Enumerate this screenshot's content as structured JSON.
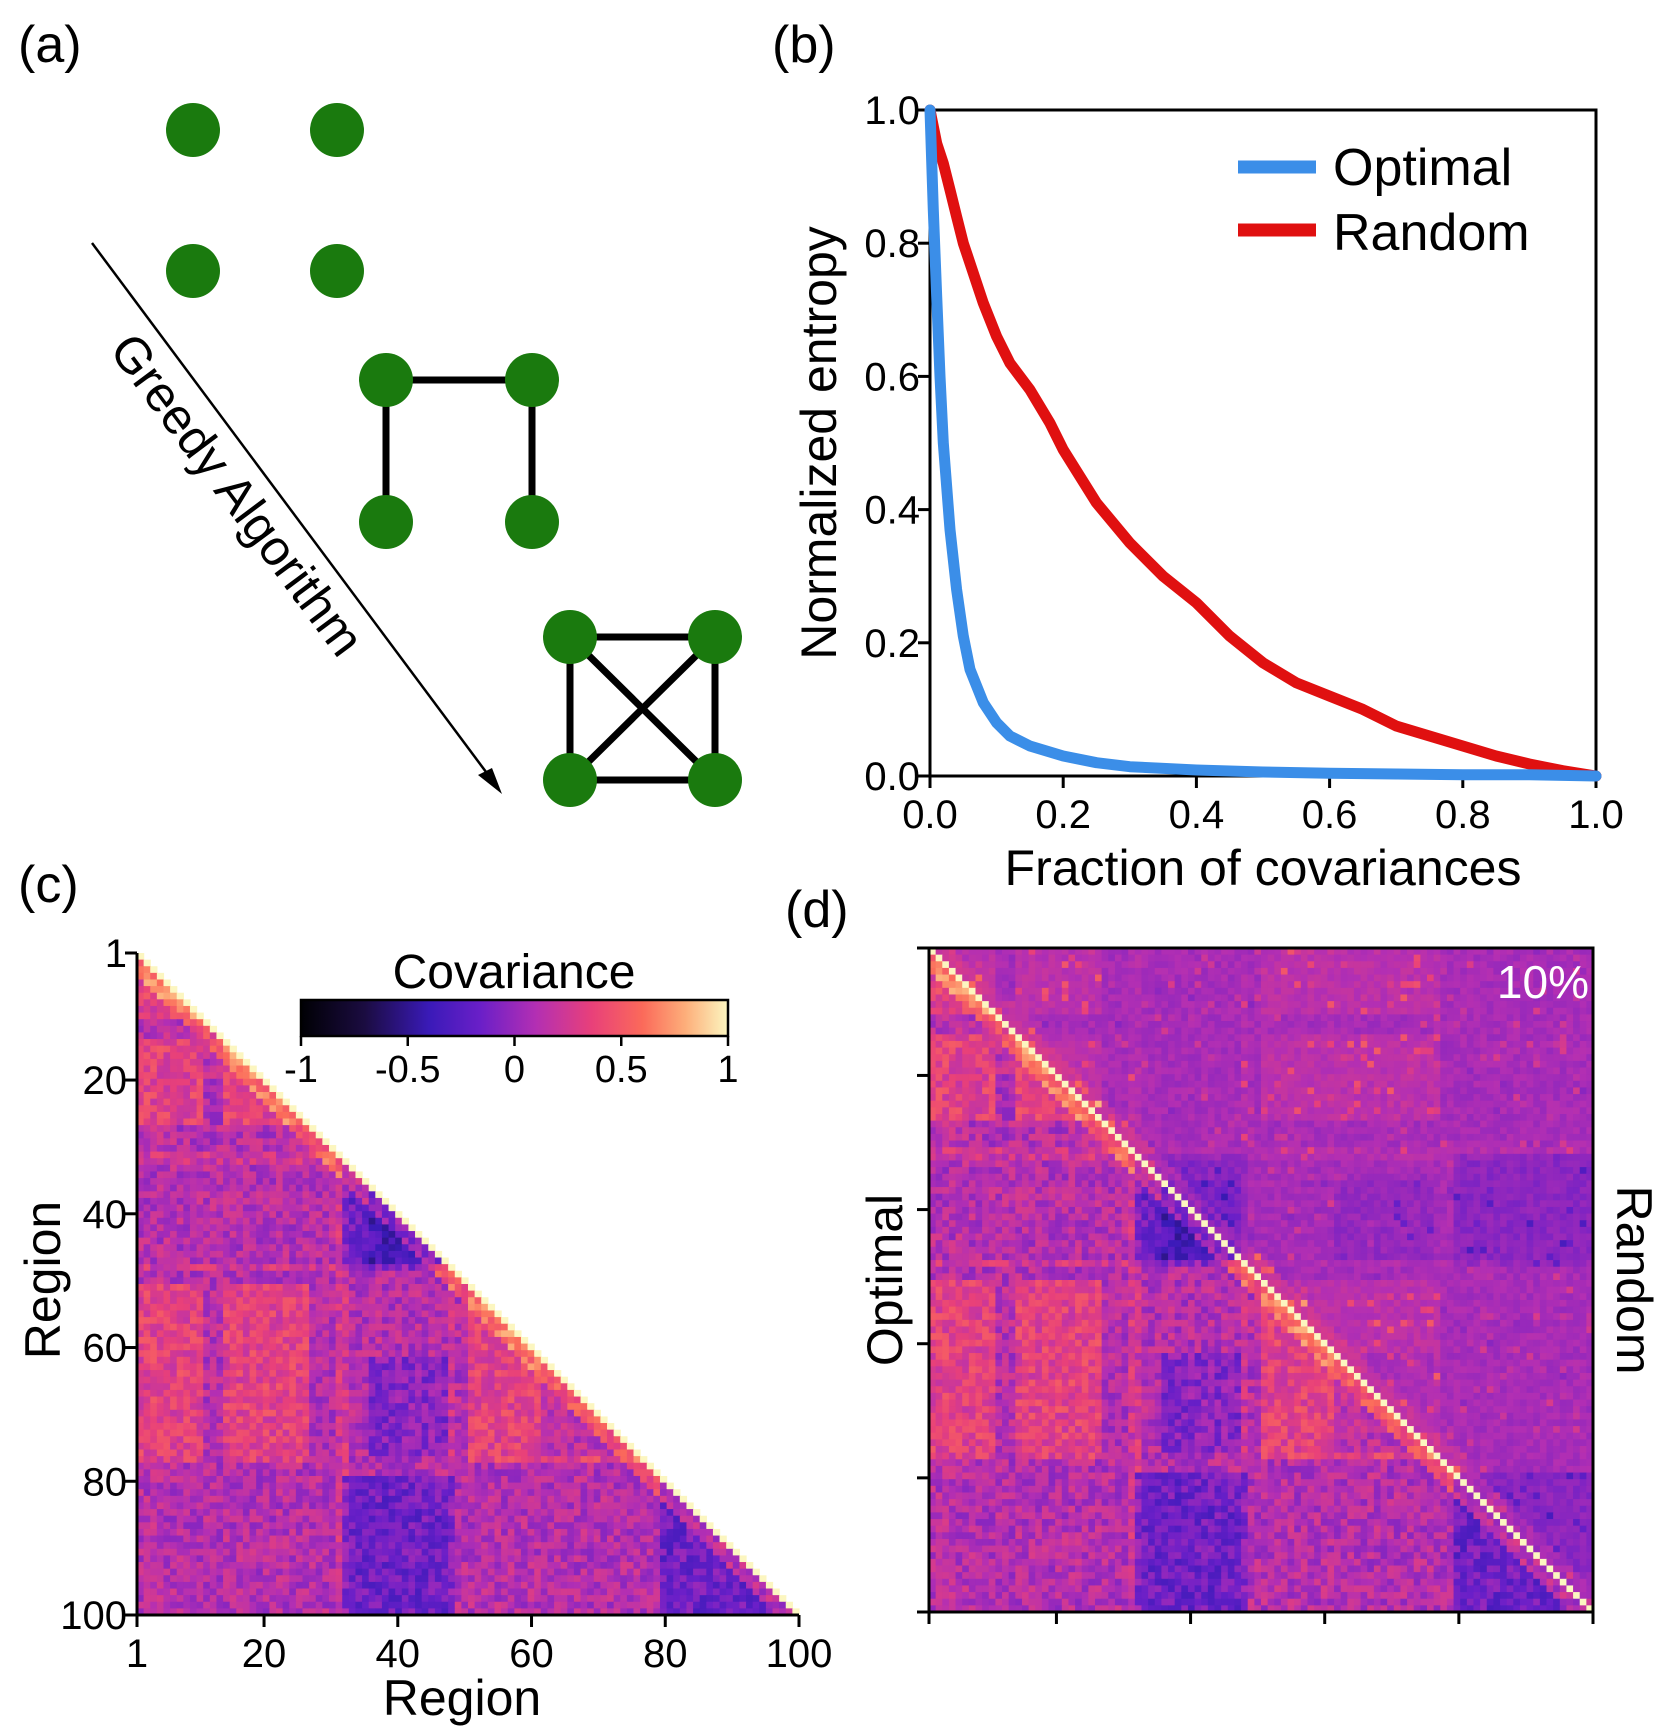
{
  "panels": {
    "a": {
      "label": "(a)",
      "arrow_text": "Greedy Algorithm",
      "node_color": "#1a7a0e"
    },
    "b": {
      "label": "(b)"
    },
    "c": {
      "label": "(c)"
    },
    "d": {
      "label": "(d)",
      "percent": "10%",
      "left_label": "Optimal",
      "right_label": "Random"
    }
  },
  "chart_data": [
    {
      "type": "line",
      "panel": "b",
      "xlabel": "Fraction of covariances",
      "ylabel": "Normalized entropy",
      "xlim": [
        0,
        1
      ],
      "ylim": [
        0,
        1
      ],
      "xticks": [
        "0.0",
        "0.2",
        "0.4",
        "0.6",
        "0.8",
        "1.0"
      ],
      "yticks": [
        "0.0",
        "0.2",
        "0.4",
        "0.6",
        "0.8",
        "1.0"
      ],
      "legend_position": "top-right",
      "series": [
        {
          "name": "Optimal",
          "color": "#3b8ee8",
          "x": [
            0,
            0.005,
            0.01,
            0.015,
            0.02,
            0.03,
            0.04,
            0.05,
            0.06,
            0.08,
            0.1,
            0.12,
            0.15,
            0.2,
            0.25,
            0.3,
            0.4,
            0.5,
            0.6,
            0.7,
            0.8,
            0.9,
            1.0
          ],
          "y": [
            1.0,
            0.85,
            0.72,
            0.6,
            0.5,
            0.37,
            0.28,
            0.21,
            0.16,
            0.11,
            0.08,
            0.06,
            0.045,
            0.03,
            0.02,
            0.014,
            0.009,
            0.006,
            0.004,
            0.003,
            0.002,
            0.002,
            0.0
          ]
        },
        {
          "name": "Random",
          "color": "#e01010",
          "x": [
            0,
            0.01,
            0.02,
            0.03,
            0.04,
            0.05,
            0.06,
            0.08,
            0.1,
            0.12,
            0.15,
            0.18,
            0.2,
            0.25,
            0.3,
            0.35,
            0.4,
            0.45,
            0.5,
            0.55,
            0.6,
            0.65,
            0.7,
            0.75,
            0.8,
            0.85,
            0.9,
            0.95,
            1.0
          ],
          "y": [
            1.0,
            0.95,
            0.92,
            0.88,
            0.84,
            0.8,
            0.77,
            0.71,
            0.66,
            0.62,
            0.58,
            0.53,
            0.49,
            0.41,
            0.35,
            0.3,
            0.26,
            0.21,
            0.17,
            0.14,
            0.12,
            0.1,
            0.075,
            0.06,
            0.045,
            0.03,
            0.018,
            0.008,
            0.0
          ]
        }
      ]
    },
    {
      "type": "heatmap",
      "panel": "c",
      "xlabel": "Region",
      "ylabel": "Region",
      "n": 100,
      "xticks": [
        "1",
        "20",
        "40",
        "60",
        "80",
        "100"
      ],
      "yticks": [
        "1",
        "20",
        "40",
        "60",
        "80",
        "100"
      ],
      "colorbar": {
        "title": "Covariance",
        "ticks": [
          "-1",
          "-0.5",
          "0",
          "0.5",
          "1"
        ],
        "range": [
          -1,
          1
        ]
      },
      "triangle": "lower"
    },
    {
      "type": "heatmap",
      "panel": "d",
      "n": 100,
      "lower": "Optimal",
      "upper": "Random",
      "fraction": 0.1
    }
  ]
}
